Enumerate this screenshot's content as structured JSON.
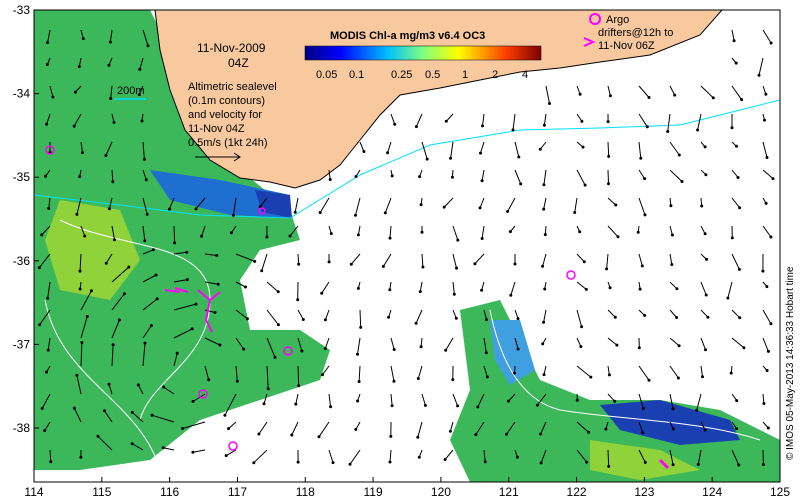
{
  "map": {
    "title_date": "11-Nov-2009",
    "title_time": "04Z",
    "sealevel_text": [
      "Altimetric sealevel",
      "(0.1m contours)",
      "and velocity for",
      "11-Nov 04Z"
    ],
    "scale_label": "0.5m/s (1kt 24h)",
    "isobath_label": "200m",
    "colorbar_title": "MODIS Chl-a mg/m3 v6.4 OC3",
    "colorbar_ticks": [
      "0.05",
      "0.1",
      "0.25",
      "0.5",
      "1",
      "2",
      "4"
    ],
    "argo_legend": [
      "Argo",
      "drifters@12h to",
      "11-Nov 06Z"
    ],
    "credit": "© IMOS 05-May-2013 14:36:33 Hobart time",
    "lon_ticks": [
      "114",
      "115",
      "116",
      "117",
      "118",
      "119",
      "120",
      "121",
      "122",
      "123",
      "124",
      "125"
    ],
    "lat_ticks": [
      "-33",
      "-34",
      "-35",
      "-36",
      "-37",
      "-38"
    ],
    "colors": {
      "land": "#f8c99f",
      "chl_low": "#1a3fb0",
      "chl_mid": "#3f9fe0",
      "chl_green": "#3cb85a",
      "chl_high": "#8fd23a",
      "marker": "#ff00ff",
      "isobath": "#00e0ff",
      "vector": "#000000"
    }
  }
}
